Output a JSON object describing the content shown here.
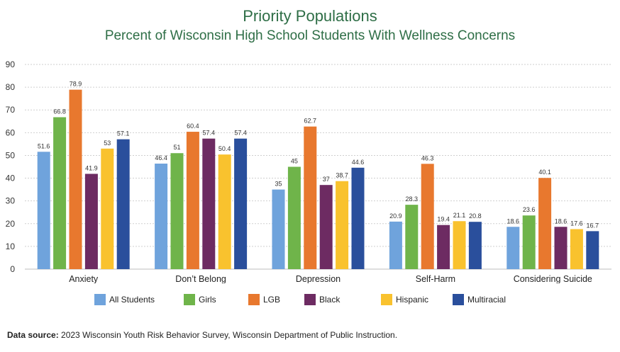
{
  "chart_data": {
    "type": "bar",
    "title": "Priority Populations",
    "subtitle": "Percent of Wisconsin High School Students With Wellness Concerns",
    "categories": [
      "Anxiety",
      "Don’t Belong",
      "Depression",
      "Self-Harm",
      "Considering Suicide"
    ],
    "series": [
      {
        "name": "All Students",
        "color": "#6fa3dc",
        "values": [
          51.6,
          46.4,
          35,
          20.9,
          18.6
        ]
      },
      {
        "name": "Girls",
        "color": "#6fb44a",
        "values": [
          66.8,
          51,
          45,
          28.3,
          23.6
        ]
      },
      {
        "name": "LGB",
        "color": "#e8782e",
        "values": [
          78.9,
          60.4,
          62.7,
          46.3,
          40.1
        ]
      },
      {
        "name": "Black",
        "color": "#6d2b62",
        "values": [
          41.9,
          57.4,
          37,
          19.4,
          18.6
        ]
      },
      {
        "name": "Hispanic",
        "color": "#f9c22e",
        "values": [
          53,
          50.4,
          38.7,
          21.1,
          17.6
        ]
      },
      {
        "name": "Multiracial",
        "color": "#2a4f9c",
        "values": [
          57.1,
          57.4,
          44.6,
          20.8,
          16.7
        ]
      }
    ],
    "ylim": [
      0,
      90
    ],
    "yticks": [
      "0",
      "10",
      "20",
      "30",
      "40",
      "50",
      "60",
      "70",
      "80",
      "90"
    ],
    "xlabel": "",
    "ylabel": "",
    "grid": true,
    "legend_position": "bottom"
  },
  "footer": {
    "source_label": "Data source:",
    "source_text": " 2023 Wisconsin Youth Risk Behavior Survey, Wisconsin Department of Public Instruction."
  }
}
